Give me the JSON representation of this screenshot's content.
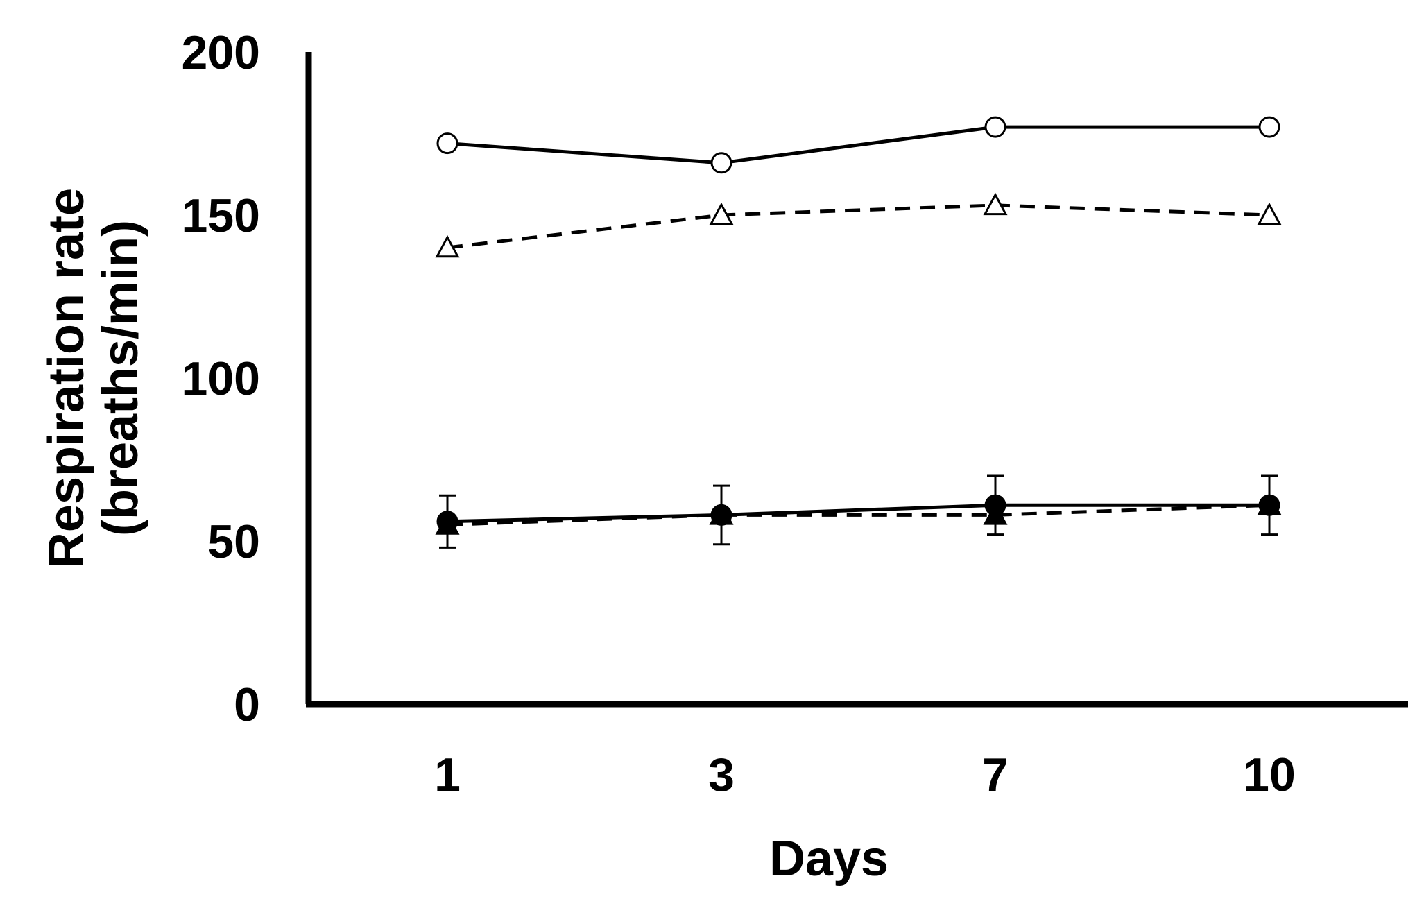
{
  "chart_data": {
    "type": "line",
    "title": "",
    "xlabel": "Days",
    "ylabel": "Respiration rate",
    "ylabel_unit": "(breaths/min)",
    "categories": [
      "1",
      "3",
      "7",
      "10"
    ],
    "ylim": [
      0,
      200
    ],
    "yticks": [
      "0",
      "50",
      "100",
      "150",
      "200"
    ],
    "grid": false,
    "legend": "none",
    "series": [
      {
        "marker": "open-circle",
        "line": "solid",
        "color": "#000000",
        "values": [
          172,
          166,
          177,
          177
        ]
      },
      {
        "marker": "open-triangle",
        "line": "dashed",
        "color": "#000000",
        "values": [
          140,
          150,
          153,
          150
        ]
      },
      {
        "marker": "filled-circle",
        "line": "solid",
        "color": "#000000",
        "values": [
          56,
          58,
          61,
          61
        ],
        "error": [
          8,
          9,
          9,
          9
        ]
      },
      {
        "marker": "filled-triangle",
        "line": "dashed",
        "color": "#000000",
        "values": [
          55,
          58,
          58,
          61
        ],
        "error": [
          0,
          0,
          0,
          0
        ]
      }
    ]
  }
}
